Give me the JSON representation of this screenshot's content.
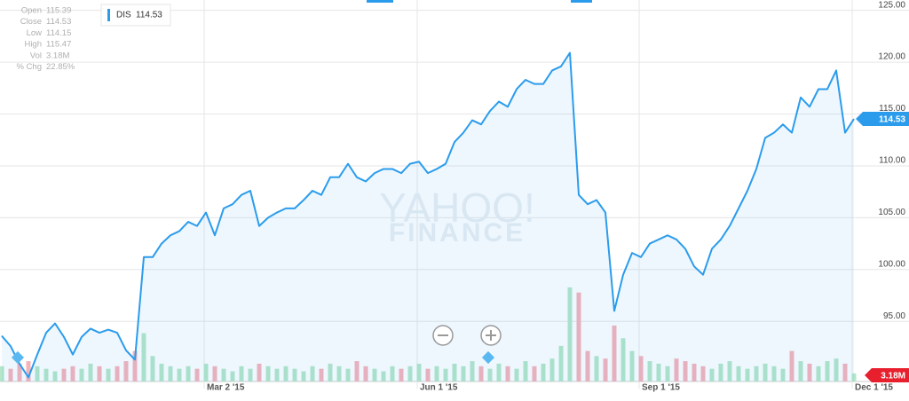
{
  "chart_data": {
    "type": "line",
    "title": "DIS",
    "watermark": [
      "YAHOO!",
      "FINANCE"
    ],
    "info": [
      {
        "label": "Open",
        "value": "115.39"
      },
      {
        "label": "Close",
        "value": "114.53"
      },
      {
        "label": "Low",
        "value": "114.15"
      },
      {
        "label": "High",
        "value": "115.47"
      },
      {
        "label": "Vol",
        "value": "3.18M"
      },
      {
        "label": "% Chg",
        "value": "22.85%"
      }
    ],
    "categories": [
      null,
      null,
      null,
      null,
      null,
      null,
      null,
      null,
      null,
      null,
      null,
      null,
      null,
      null,
      null,
      null,
      null,
      null,
      null,
      null,
      null,
      null,
      null,
      "Mar 2 '15",
      null,
      null,
      null,
      null,
      null,
      null,
      null,
      null,
      null,
      null,
      null,
      null,
      null,
      null,
      null,
      null,
      null,
      null,
      null,
      null,
      null,
      null,
      null,
      "Jun 1 '15",
      null,
      null,
      null,
      null,
      null,
      null,
      null,
      null,
      null,
      null,
      null,
      null,
      null,
      null,
      null,
      null,
      null,
      null,
      null,
      null,
      null,
      null,
      null,
      null,
      "Sep 1 '15",
      null,
      null,
      null,
      null,
      null,
      null,
      null,
      null,
      null,
      null,
      null,
      null,
      null,
      null,
      null,
      null,
      null,
      null,
      null,
      null,
      null,
      null,
      null,
      "Dec 1 '15"
    ],
    "series": [
      {
        "name": "DIS",
        "color": "#2b9cec",
        "values": [
          93.6,
          92.6,
          90.9,
          89.6,
          91.8,
          93.9,
          94.8,
          93.5,
          91.8,
          93.5,
          94.3,
          93.9,
          94.2,
          93.9,
          92.2,
          91.3,
          101.2,
          101.2,
          102.5,
          103.3,
          103.7,
          104.6,
          104.2,
          105.5,
          103.3,
          105.9,
          106.3,
          107.2,
          107.6,
          104.2,
          105.0,
          105.5,
          105.9,
          105.9,
          106.7,
          107.6,
          107.2,
          108.9,
          108.9,
          110.2,
          108.9,
          108.5,
          109.3,
          109.7,
          109.7,
          109.3,
          110.2,
          110.4,
          109.3,
          109.7,
          110.2,
          112.3,
          113.2,
          114.4,
          114.0,
          115.3,
          116.2,
          115.7,
          117.4,
          118.3,
          117.9,
          117.9,
          119.2,
          119.6,
          120.9,
          107.2,
          106.3,
          106.7,
          105.5,
          96.0,
          99.5,
          101.6,
          101.2,
          102.5,
          102.9,
          103.3,
          102.9,
          102.0,
          100.3,
          99.5,
          102.0,
          102.9,
          104.2,
          105.9,
          107.6,
          109.7,
          112.7,
          113.2,
          114.0,
          113.2,
          116.6,
          115.7,
          117.4,
          117.4,
          119.2,
          113.2,
          114.53
        ]
      },
      {
        "name": "Vol",
        "axis": "y2",
        "up_color": "#b5e6c9",
        "down_color": "#f6b3ba",
        "label_color": "#e8202e",
        "values": [
          6,
          5,
          7,
          8,
          6,
          5,
          4,
          5,
          6,
          5,
          7,
          6,
          5,
          6,
          8,
          12,
          19,
          10,
          7,
          6,
          5,
          6,
          5,
          7,
          6,
          5,
          4,
          6,
          5,
          7,
          6,
          5,
          6,
          5,
          4,
          6,
          5,
          7,
          6,
          5,
          8,
          6,
          5,
          4,
          6,
          5,
          6,
          7,
          5,
          6,
          5,
          7,
          6,
          8,
          6,
          5,
          7,
          6,
          5,
          8,
          6,
          7,
          9,
          14,
          37,
          35,
          12,
          10,
          9,
          22,
          17,
          12,
          10,
          8,
          7,
          6,
          9,
          8,
          7,
          6,
          5,
          7,
          8,
          6,
          5,
          6,
          7,
          6,
          5,
          12,
          8,
          7,
          6,
          8,
          9,
          7,
          3.18
        ],
        "value_labels": [
          null,
          null,
          null,
          null,
          null,
          null,
          null,
          null,
          null,
          null,
          null,
          null,
          null,
          null,
          null,
          null,
          null,
          null,
          null,
          null,
          null,
          null,
          null,
          null,
          null,
          null,
          null,
          null,
          null,
          null,
          null,
          null,
          null,
          null,
          null,
          null,
          null,
          null,
          null,
          null,
          null,
          null,
          null,
          null,
          null,
          null,
          null,
          null,
          null,
          null,
          null,
          null,
          null,
          null,
          null,
          null,
          null,
          null,
          null,
          null,
          null,
          null,
          null,
          null,
          null,
          null,
          null,
          null,
          null,
          null,
          null,
          null,
          null,
          null,
          null,
          null,
          null,
          null,
          null,
          null,
          null,
          null,
          null,
          null,
          null,
          null,
          null,
          null,
          null,
          null,
          null,
          null,
          null,
          null,
          null,
          null,
          "3.18M"
        ]
      }
    ],
    "ylim": [
      89.2,
      126
    ],
    "yticks": [
      {
        "value": 95,
        "label": "95.00"
      },
      {
        "value": 100,
        "label": "100.00"
      },
      {
        "value": 105,
        "label": "105.00"
      },
      {
        "value": 110,
        "label": "110.00"
      },
      {
        "value": 115,
        "label": "115.00"
      },
      {
        "value": 120,
        "label": "120.00"
      },
      {
        "value": 125,
        "label": "125.00"
      }
    ],
    "y2lim": [
      0,
      150
    ],
    "grid": true
  }
}
